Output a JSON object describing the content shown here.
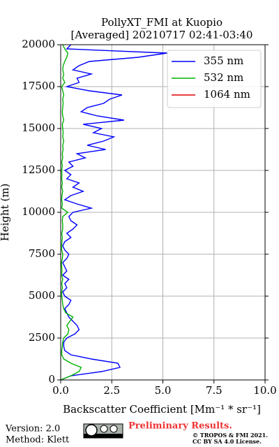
{
  "chart_data": {
    "type": "line",
    "title": "PollyXT_FMI at Kuopio",
    "subtitle": "[Averaged] 20210717 02:41-03:40",
    "x_label": "Backscatter Coefficient [Mm⁻¹ * sr⁻¹]",
    "y_label": "Height (m)",
    "y": [
      0,
      250,
      500,
      750,
      1000,
      1250,
      1500,
      1750,
      2000,
      2250,
      2500,
      2750,
      3000,
      3250,
      3500,
      3750,
      4000,
      4250,
      4500,
      4750,
      5000,
      5250,
      5500,
      5750,
      6000,
      6250,
      6500,
      6750,
      7000,
      7250,
      7500,
      7750,
      8000,
      8250,
      8500,
      8750,
      9000,
      9250,
      9500,
      9750,
      10000,
      10250,
      10500,
      10750,
      11000,
      11250,
      11500,
      11750,
      12000,
      12250,
      12500,
      12750,
      13000,
      13250,
      13500,
      13750,
      14000,
      14250,
      14500,
      14750,
      15000,
      15250,
      15500,
      15750,
      16000,
      16250,
      16500,
      16750,
      17000,
      17250,
      17500,
      17750,
      18000,
      18250,
      18500,
      18750,
      19000,
      19250,
      19500,
      19750,
      20000
    ],
    "series": [
      {
        "name": "355 nm",
        "color": "#0000ff",
        "values": [
          0.0,
          0.5,
          2.0,
          2.9,
          2.8,
          1.5,
          0.5,
          0.2,
          0.15,
          0.15,
          0.3,
          0.7,
          0.9,
          0.8,
          0.6,
          0.4,
          0.3,
          0.2,
          0.4,
          0.5,
          0.2,
          0.1,
          0.3,
          0.2,
          0.4,
          0.1,
          0.3,
          0.2,
          0.1,
          0.3,
          0.4,
          0.2,
          0.1,
          0.2,
          0.5,
          0.3,
          0.6,
          0.8,
          0.5,
          0.4,
          0.6,
          1.5,
          0.8,
          0.2,
          0.5,
          1.1,
          0.6,
          0.9,
          0.3,
          0.5,
          0.2,
          0.6,
          0.4,
          1.2,
          0.8,
          2.2,
          1.3,
          2.1,
          2.6,
          1.6,
          2.0,
          1.1,
          3.1,
          1.8,
          1.0,
          1.3,
          2.1,
          2.4,
          3.0,
          1.4,
          0.3,
          0.9,
          0.8,
          1.5,
          0.6,
          0.9,
          1.4,
          3.8,
          5.2,
          0.3,
          0.5
        ]
      },
      {
        "name": "532 nm",
        "color": "#00b000",
        "values": [
          0.0,
          0.5,
          0.9,
          1.0,
          0.5,
          0.15,
          0.05,
          0.05,
          0.08,
          0.1,
          0.15,
          0.35,
          0.4,
          0.3,
          0.45,
          0.6,
          0.25,
          0.15,
          0.1,
          0.08,
          0.05,
          0.05,
          0.08,
          0.05,
          0.1,
          0.05,
          0.06,
          0.05,
          0.04,
          0.08,
          0.1,
          0.05,
          0.05,
          0.06,
          0.08,
          0.05,
          0.1,
          0.1,
          0.08,
          0.1,
          0.35,
          0.05,
          0.08,
          0.05,
          0.06,
          0.1,
          0.05,
          0.08,
          0.05,
          0.06,
          0.05,
          0.08,
          0.05,
          0.1,
          0.08,
          0.12,
          0.1,
          0.15,
          0.1,
          0.12,
          0.1,
          0.08,
          0.15,
          0.1,
          0.08,
          0.1,
          0.12,
          0.1,
          0.15,
          0.1,
          0.05,
          0.2,
          0.1,
          0.15,
          0.1,
          0.12,
          0.2,
          0.3,
          0.35,
          0.2,
          0.1
        ]
      },
      {
        "name": "1064 nm",
        "color": "#e00000",
        "values": [
          null,
          null,
          null,
          null,
          null,
          null,
          null,
          null,
          null,
          null,
          null,
          null,
          null,
          null,
          null,
          null,
          null,
          null,
          null,
          null,
          null,
          null,
          null,
          null,
          null,
          null,
          null,
          null,
          null,
          null,
          null,
          null,
          null,
          null,
          null,
          null,
          null,
          null,
          null,
          null,
          null,
          null,
          null,
          null,
          null,
          null,
          null,
          null,
          null,
          null,
          null,
          null,
          null,
          null,
          null,
          null,
          null,
          null,
          null,
          null,
          null,
          null,
          null,
          null,
          null,
          null,
          null,
          null,
          null,
          null,
          null,
          null,
          null,
          null,
          null,
          null,
          null,
          null,
          null,
          null,
          null
        ]
      }
    ],
    "xlim": [
      0,
      10
    ],
    "xticks": [
      {
        "value": 0,
        "label": "0.0"
      },
      {
        "value": 2.5,
        "label": "2.5"
      },
      {
        "value": 5,
        "label": "5.0"
      },
      {
        "value": 7.5,
        "label": "7.5"
      },
      {
        "value": 10,
        "label": "10.0"
      }
    ],
    "ylim": [
      0,
      20000
    ],
    "yticks": [
      0,
      2500,
      5000,
      7500,
      10000,
      12500,
      15000,
      17500,
      20000
    ],
    "grid": true,
    "legend": "upper right"
  },
  "footer": {
    "version": "Version: 2.0",
    "method": "Method: Klett",
    "status": "Preliminary Results.",
    "copyright": "© TROPOS & FMI 2021.",
    "license": "CC BY SA 4.0 License."
  }
}
